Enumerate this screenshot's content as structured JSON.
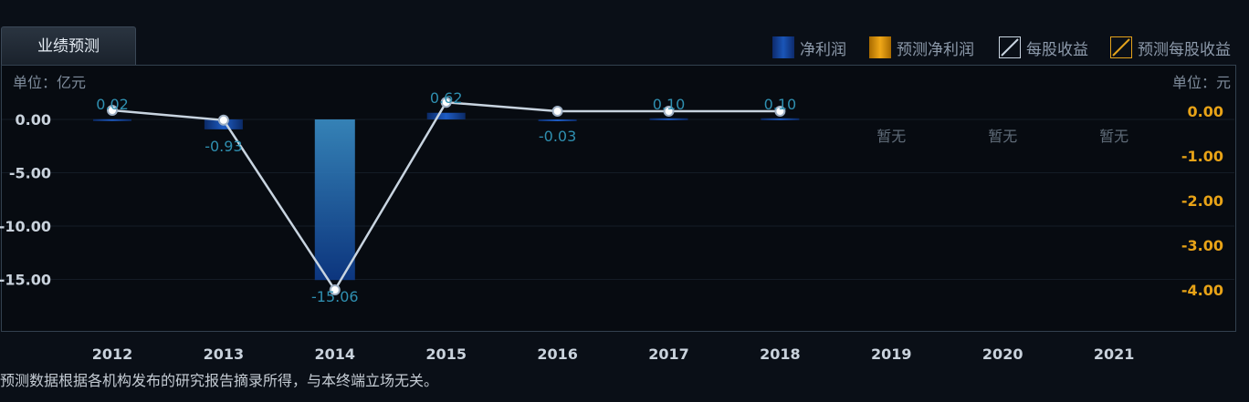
{
  "tab_label": "业绩预测",
  "legend": [
    {
      "label": "净利润",
      "kind": "net"
    },
    {
      "label": "预测净利润",
      "kind": "fnet"
    },
    {
      "label": "每股收益",
      "kind": "eps"
    },
    {
      "label": "预测每股收益",
      "kind": "feps"
    }
  ],
  "left_unit": "单位：亿元",
  "right_unit": "单位：元",
  "footnote": "预测数据根据各机构发布的研究报告摘录所得，与本终端立场无关。",
  "chart_data": {
    "type": "bar",
    "categories": [
      "2012",
      "2013",
      "2014",
      "2015",
      "2016",
      "2017",
      "2018",
      "2019",
      "2020",
      "2021"
    ],
    "series": [
      {
        "name": "净利润",
        "axis": "left",
        "values": [
          0.02,
          -0.93,
          -15.06,
          0.62,
          -0.03,
          0.1,
          0.1,
          null,
          null,
          null
        ],
        "value_labels": [
          "0.02",
          "-0.93",
          "-15.06",
          "0.62",
          "-0.03",
          "0.10",
          "0.10",
          "暂无",
          "暂无",
          "暂无"
        ]
      },
      {
        "name": "每股收益",
        "axis": "right",
        "values": [
          0.02,
          -0.2,
          -4.0,
          0.2,
          0.0,
          0.0,
          0.0,
          null,
          null,
          null
        ]
      }
    ],
    "left_axis": {
      "ticks": [
        "0.00",
        "-5.00",
        "-10.00",
        "-15.00"
      ],
      "tick_values": [
        0,
        -5,
        -10,
        -15
      ],
      "range": [
        -20,
        1
      ]
    },
    "right_axis": {
      "ticks": [
        "0.00",
        "-1.00",
        "-2.00",
        "-3.00",
        "-4.00"
      ],
      "tick_values": [
        0,
        -1,
        -2,
        -3,
        -4
      ],
      "range": [
        -4.8,
        0.2
      ]
    },
    "colors": {
      "bar": "#1a55b8",
      "line": "#c8d4e0",
      "right_tick": "#e8a317",
      "value_label": "#2f8fb0"
    }
  }
}
